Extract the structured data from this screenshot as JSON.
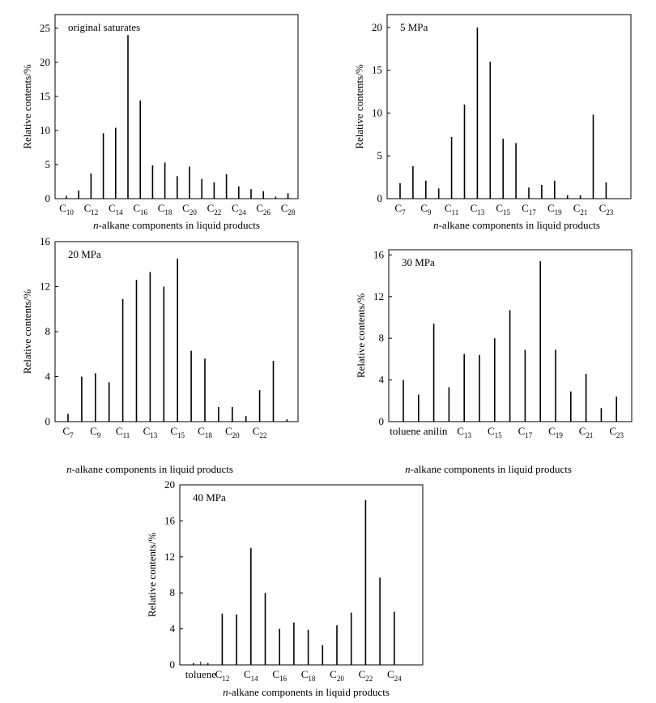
{
  "chart_data": [
    {
      "type": "bar",
      "panel": "original saturates",
      "title": "original saturates",
      "ylabel": "Relative contents/%",
      "xlabel_italic": "n",
      "xlabel_rest": "-alkane components in liquid products",
      "ylim": [
        0,
        27
      ],
      "yticks": [
        0,
        5,
        10,
        15,
        20,
        25
      ],
      "xlabels": [
        {
          "base": "C",
          "sub": "10",
          "at": 0
        },
        {
          "base": "C",
          "sub": "12",
          "at": 2
        },
        {
          "base": "C",
          "sub": "14",
          "at": 4
        },
        {
          "base": "C",
          "sub": "16",
          "at": 6
        },
        {
          "base": "C",
          "sub": "18",
          "at": 8
        },
        {
          "base": "C",
          "sub": "20",
          "at": 10
        },
        {
          "base": "C",
          "sub": "22",
          "at": 12
        },
        {
          "base": "C",
          "sub": "24",
          "at": 14
        },
        {
          "base": "C",
          "sub": "26",
          "at": 16
        },
        {
          "base": "C",
          "sub": "28",
          "at": 18
        }
      ],
      "categories": [
        "C10",
        "C11",
        "C12",
        "C13",
        "C14",
        "C15",
        "C16",
        "C17",
        "C18",
        "C19",
        "C20",
        "C21",
        "C22",
        "C23",
        "C24",
        "C25",
        "C26",
        "C27",
        "C28"
      ],
      "values": [
        0.3,
        1.2,
        3.7,
        9.6,
        10.4,
        24.0,
        14.4,
        4.9,
        5.3,
        3.3,
        4.7,
        2.9,
        2.4,
        3.6,
        1.8,
        1.4,
        1.1,
        0.3,
        0.8
      ]
    },
    {
      "type": "bar",
      "panel": "5 MPa",
      "title": "5 MPa",
      "ylabel": "Relative contents/%",
      "xlabel_italic": "n",
      "xlabel_rest": "-alkane components in liquid products",
      "ylim": [
        0,
        21.5
      ],
      "yticks": [
        0,
        5,
        10,
        15,
        20
      ],
      "xlabels": [
        {
          "base": "C",
          "sub": "7",
          "at": 0
        },
        {
          "base": "C",
          "sub": "9",
          "at": 2
        },
        {
          "base": "C",
          "sub": "11",
          "at": 4
        },
        {
          "base": "C",
          "sub": "13",
          "at": 6
        },
        {
          "base": "C",
          "sub": "15",
          "at": 8
        },
        {
          "base": "C",
          "sub": "17",
          "at": 10
        },
        {
          "base": "C",
          "sub": "19",
          "at": 12
        },
        {
          "base": "C",
          "sub": "21",
          "at": 14
        },
        {
          "base": "C",
          "sub": "23",
          "at": 16
        }
      ],
      "categories": [
        "C7",
        "C8",
        "C9",
        "C10",
        "C11",
        "C12",
        "C13",
        "C14",
        "C15",
        "C16",
        "C17",
        "C18",
        "C19",
        "C20",
        "C21",
        "C22",
        "C23"
      ],
      "values": [
        1.8,
        3.8,
        2.1,
        1.2,
        7.2,
        11.0,
        20.0,
        16.0,
        7.0,
        6.5,
        1.3,
        1.6,
        2.1,
        0.4,
        0.4,
        9.8,
        1.9
      ]
    },
    {
      "type": "bar",
      "panel": "20 MPa",
      "title": "20 MPa",
      "ylabel": "Relative contents/%",
      "xlabel_italic": "n",
      "xlabel_rest": "-alkane components in liquid products",
      "ylim": [
        0,
        16
      ],
      "yticks": [
        0,
        4,
        8,
        12,
        16
      ],
      "xlabels": [
        {
          "base": "C",
          "sub": "7",
          "at": 0
        },
        {
          "base": "C",
          "sub": "9",
          "at": 2
        },
        {
          "base": "C",
          "sub": "11",
          "at": 4
        },
        {
          "base": "C",
          "sub": "13",
          "at": 6
        },
        {
          "base": "C",
          "sub": "15",
          "at": 8
        },
        {
          "base": "C",
          "sub": "18",
          "at": 10
        },
        {
          "base": "C",
          "sub": "20",
          "at": 12
        },
        {
          "base": "C",
          "sub": "22",
          "at": 14
        }
      ],
      "categories": [
        "C7",
        "C8",
        "C9",
        "C10",
        "C11",
        "C12",
        "C13",
        "C14",
        "C15",
        "C16",
        "C18",
        "C19",
        "C20",
        "C21",
        "C22",
        "C23",
        "C24"
      ],
      "values": [
        0.7,
        4.0,
        4.3,
        3.5,
        10.9,
        12.6,
        13.3,
        12.0,
        14.5,
        6.3,
        5.6,
        1.3,
        1.3,
        0.5,
        2.8,
        5.4,
        0.2
      ]
    },
    {
      "type": "bar",
      "panel": "30 MPa",
      "title": "30 MPa",
      "ylabel": "Relative contents/%",
      "xlabel_italic": "n",
      "xlabel_rest": "-alkane components in liquid products",
      "ylim": [
        0,
        16.5
      ],
      "yticks": [
        0,
        4,
        8,
        12,
        16
      ],
      "xlabels": [
        {
          "text": "toluene anilin",
          "at": 1
        },
        {
          "base": "C",
          "sub": "13",
          "at": 4
        },
        {
          "base": "C",
          "sub": "15",
          "at": 6
        },
        {
          "base": "C",
          "sub": "17",
          "at": 8
        },
        {
          "base": "C",
          "sub": "19",
          "at": 10
        },
        {
          "base": "C",
          "sub": "21",
          "at": 12
        },
        {
          "base": "C",
          "sub": "23",
          "at": 14
        }
      ],
      "categories": [
        "toluene",
        "",
        "anilin",
        "",
        "C13",
        "C14",
        "C15",
        "C16",
        "C17",
        "C18",
        "C19",
        "C20",
        "C21",
        "C22",
        "C23"
      ],
      "values": [
        4.0,
        2.6,
        9.4,
        3.3,
        6.5,
        6.4,
        8.0,
        10.7,
        6.9,
        15.4,
        6.9,
        2.9,
        4.6,
        1.3,
        2.4
      ]
    },
    {
      "type": "bar",
      "panel": "40 MPa",
      "title": "40 MPa",
      "ylabel": "Relative contents/%",
      "xlabel_italic": "n",
      "xlabel_rest": "-alkane components in liquid products",
      "ylim": [
        0,
        20
      ],
      "yticks": [
        0,
        4,
        8,
        12,
        16,
        20
      ],
      "xlabels": [
        {
          "text": "toluene",
          "at": 0.5
        },
        {
          "base": "C",
          "sub": "12",
          "at": 2
        },
        {
          "base": "C",
          "sub": "14",
          "at": 4
        },
        {
          "base": "C",
          "sub": "16",
          "at": 6
        },
        {
          "base": "C",
          "sub": "18",
          "at": 8
        },
        {
          "base": "C",
          "sub": "20",
          "at": 10
        },
        {
          "base": "C",
          "sub": "22",
          "at": 12
        },
        {
          "base": "C",
          "sub": "24",
          "at": 14
        }
      ],
      "categories": [
        "toluene",
        "",
        "C12",
        "C13",
        "C14",
        "C15",
        "C16",
        "C17",
        "C18",
        "C19",
        "C20",
        "C21",
        "C22",
        "C23",
        "C24"
      ],
      "values": [
        0.2,
        0.2,
        5.7,
        5.6,
        13.0,
        8.0,
        4.0,
        4.7,
        3.9,
        2.2,
        4.4,
        5.8,
        18.3,
        9.7,
        5.9
      ]
    }
  ]
}
